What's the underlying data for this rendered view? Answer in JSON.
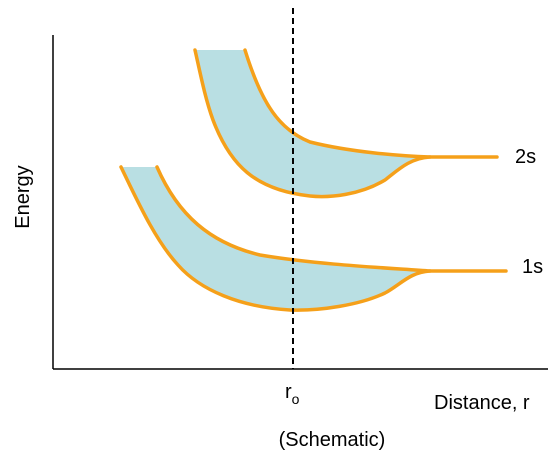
{
  "diagram": {
    "y_axis_label": "Energy",
    "x_axis_label": "Distance, r",
    "equilibrium_label": "r",
    "equilibrium_subscript": "o",
    "band_upper_label": "2s",
    "band_lower_label": "1s",
    "caption": "(Schematic)"
  },
  "colors": {
    "band_outline": "#f5a01a",
    "band_fill": "#b9dfe3",
    "axis": "#000000",
    "equilibrium_line": "#000000"
  }
}
